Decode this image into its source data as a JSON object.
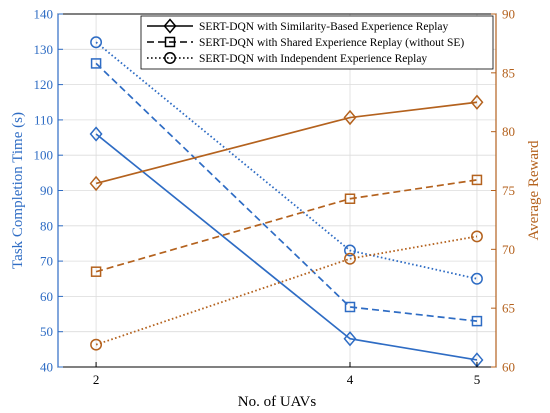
{
  "chart_data": {
    "type": "line",
    "title": "",
    "xlabel": "No. of UAVs",
    "ylabel_left": "Task Completion Time (s)",
    "ylabel_right": "Average Reward",
    "x": [
      2,
      4,
      5
    ],
    "xlim": [
      1.7,
      5.15
    ],
    "x_ticks": [
      2,
      4,
      5
    ],
    "ylim_left": [
      40,
      140
    ],
    "ylim_right": [
      60,
      90
    ],
    "yticks_left": [
      40,
      50,
      60,
      70,
      80,
      90,
      100,
      110,
      120,
      130,
      140
    ],
    "yticks_right": [
      60,
      65,
      70,
      75,
      80,
      85,
      90
    ],
    "grid": true,
    "legend_position": "top-right",
    "colors": {
      "time": "#2E6CC4",
      "reward": "#B4621E",
      "left_axis": "#2E6CC4",
      "right_axis": "#B4621E"
    },
    "series": [
      {
        "name": "SERT-DQN with Similarity-Based Experience Replay",
        "axis": "left",
        "marker": "diamond",
        "linestyle": "solid",
        "values": [
          106,
          48,
          42
        ]
      },
      {
        "name": "SERT-DQN with Shared Experience Replay (without SE)",
        "axis": "left",
        "marker": "square",
        "linestyle": "dashed",
        "values": [
          126,
          57,
          53
        ]
      },
      {
        "name": "SERT-DQN with Independent Experience Replay",
        "axis": "left",
        "marker": "circle",
        "linestyle": "dotted",
        "values": [
          132,
          73,
          65
        ]
      },
      {
        "name": "",
        "axis": "right",
        "marker": "diamond",
        "linestyle": "solid",
        "values": [
          75.6,
          81.2,
          82.5
        ]
      },
      {
        "name": "",
        "axis": "right",
        "marker": "square",
        "linestyle": "dashed",
        "values": [
          68.1,
          74.3,
          75.9
        ]
      },
      {
        "name": "",
        "axis": "right",
        "marker": "circle",
        "linestyle": "dotted",
        "values": [
          61.9,
          69.2,
          71.1
        ]
      }
    ]
  }
}
